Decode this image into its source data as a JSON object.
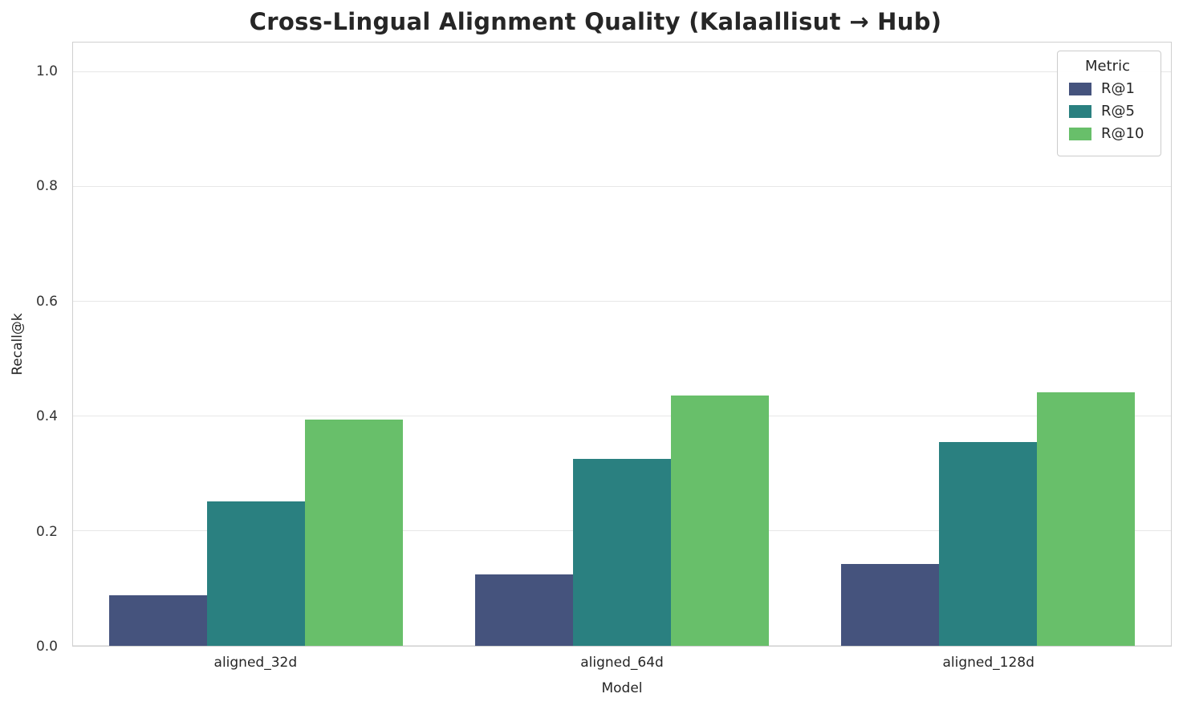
{
  "chart_data": {
    "type": "bar",
    "title": "Cross-Lingual Alignment Quality (Kalaallisut → Hub)",
    "xlabel": "Model",
    "ylabel": "Recall@k",
    "categories": [
      "aligned_32d",
      "aligned_64d",
      "aligned_128d"
    ],
    "series": [
      {
        "name": "R@1",
        "color": "#45537d",
        "values": [
          0.088,
          0.124,
          0.143
        ]
      },
      {
        "name": "R@5",
        "color": "#2a8080",
        "values": [
          0.252,
          0.326,
          0.355
        ]
      },
      {
        "name": "R@10",
        "color": "#68bf6a",
        "values": [
          0.395,
          0.436,
          0.442
        ]
      }
    ],
    "legend_title": "Metric",
    "legend_position": "upper right",
    "ylim": [
      0,
      1.0516
    ],
    "yticks": [
      "0.0",
      "0.2",
      "0.4",
      "0.6",
      "0.8",
      "1.0"
    ],
    "grid": "horizontal"
  }
}
